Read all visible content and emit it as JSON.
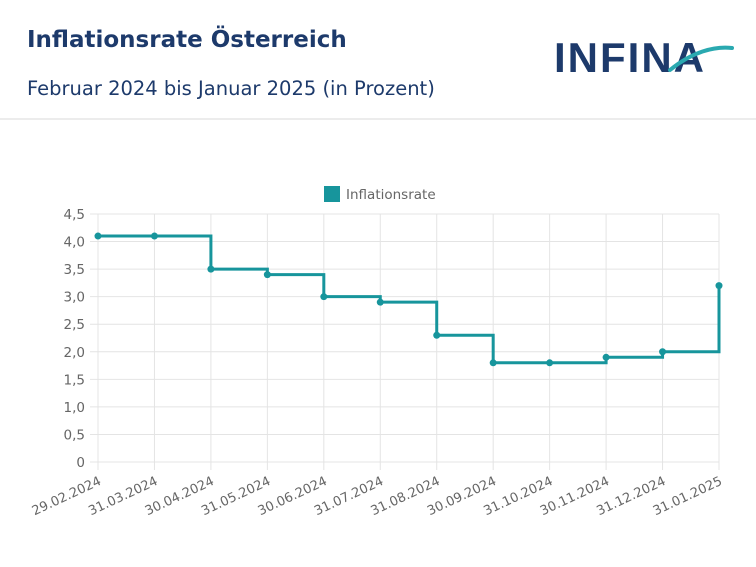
{
  "header": {
    "title": "Inflationsrate Österreich",
    "subtitle": "Februar 2024 bis Januar 2025 (in Prozent)",
    "logo_text": "INFINA"
  },
  "colors": {
    "brand": "#1d3a6b",
    "series": "#17959c",
    "accent": "#2aa9b0",
    "grid": "#e4e4e4",
    "tick_text": "#666666"
  },
  "chart_data": {
    "type": "line",
    "step": "after",
    "legend": {
      "position": "top-center"
    },
    "grid": true,
    "x": [
      "29.02.2024",
      "31.03.2024",
      "30.04.2024",
      "31.05.2024",
      "30.06.2024",
      "31.07.2024",
      "31.08.2024",
      "30.09.2024",
      "31.10.2024",
      "30.11.2024",
      "31.12.2024",
      "31.01.2025"
    ],
    "series": [
      {
        "name": "Inflationsrate",
        "values": [
          4.1,
          4.1,
          3.5,
          3.4,
          3.0,
          2.9,
          2.3,
          1.8,
          1.8,
          1.9,
          2.0,
          3.2
        ]
      }
    ],
    "ylim": [
      0,
      4.5
    ],
    "yticks": [
      "0",
      "0,5",
      "1,0",
      "1,5",
      "2,0",
      "2,5",
      "3,0",
      "3,5",
      "4,0",
      "4,5"
    ]
  }
}
